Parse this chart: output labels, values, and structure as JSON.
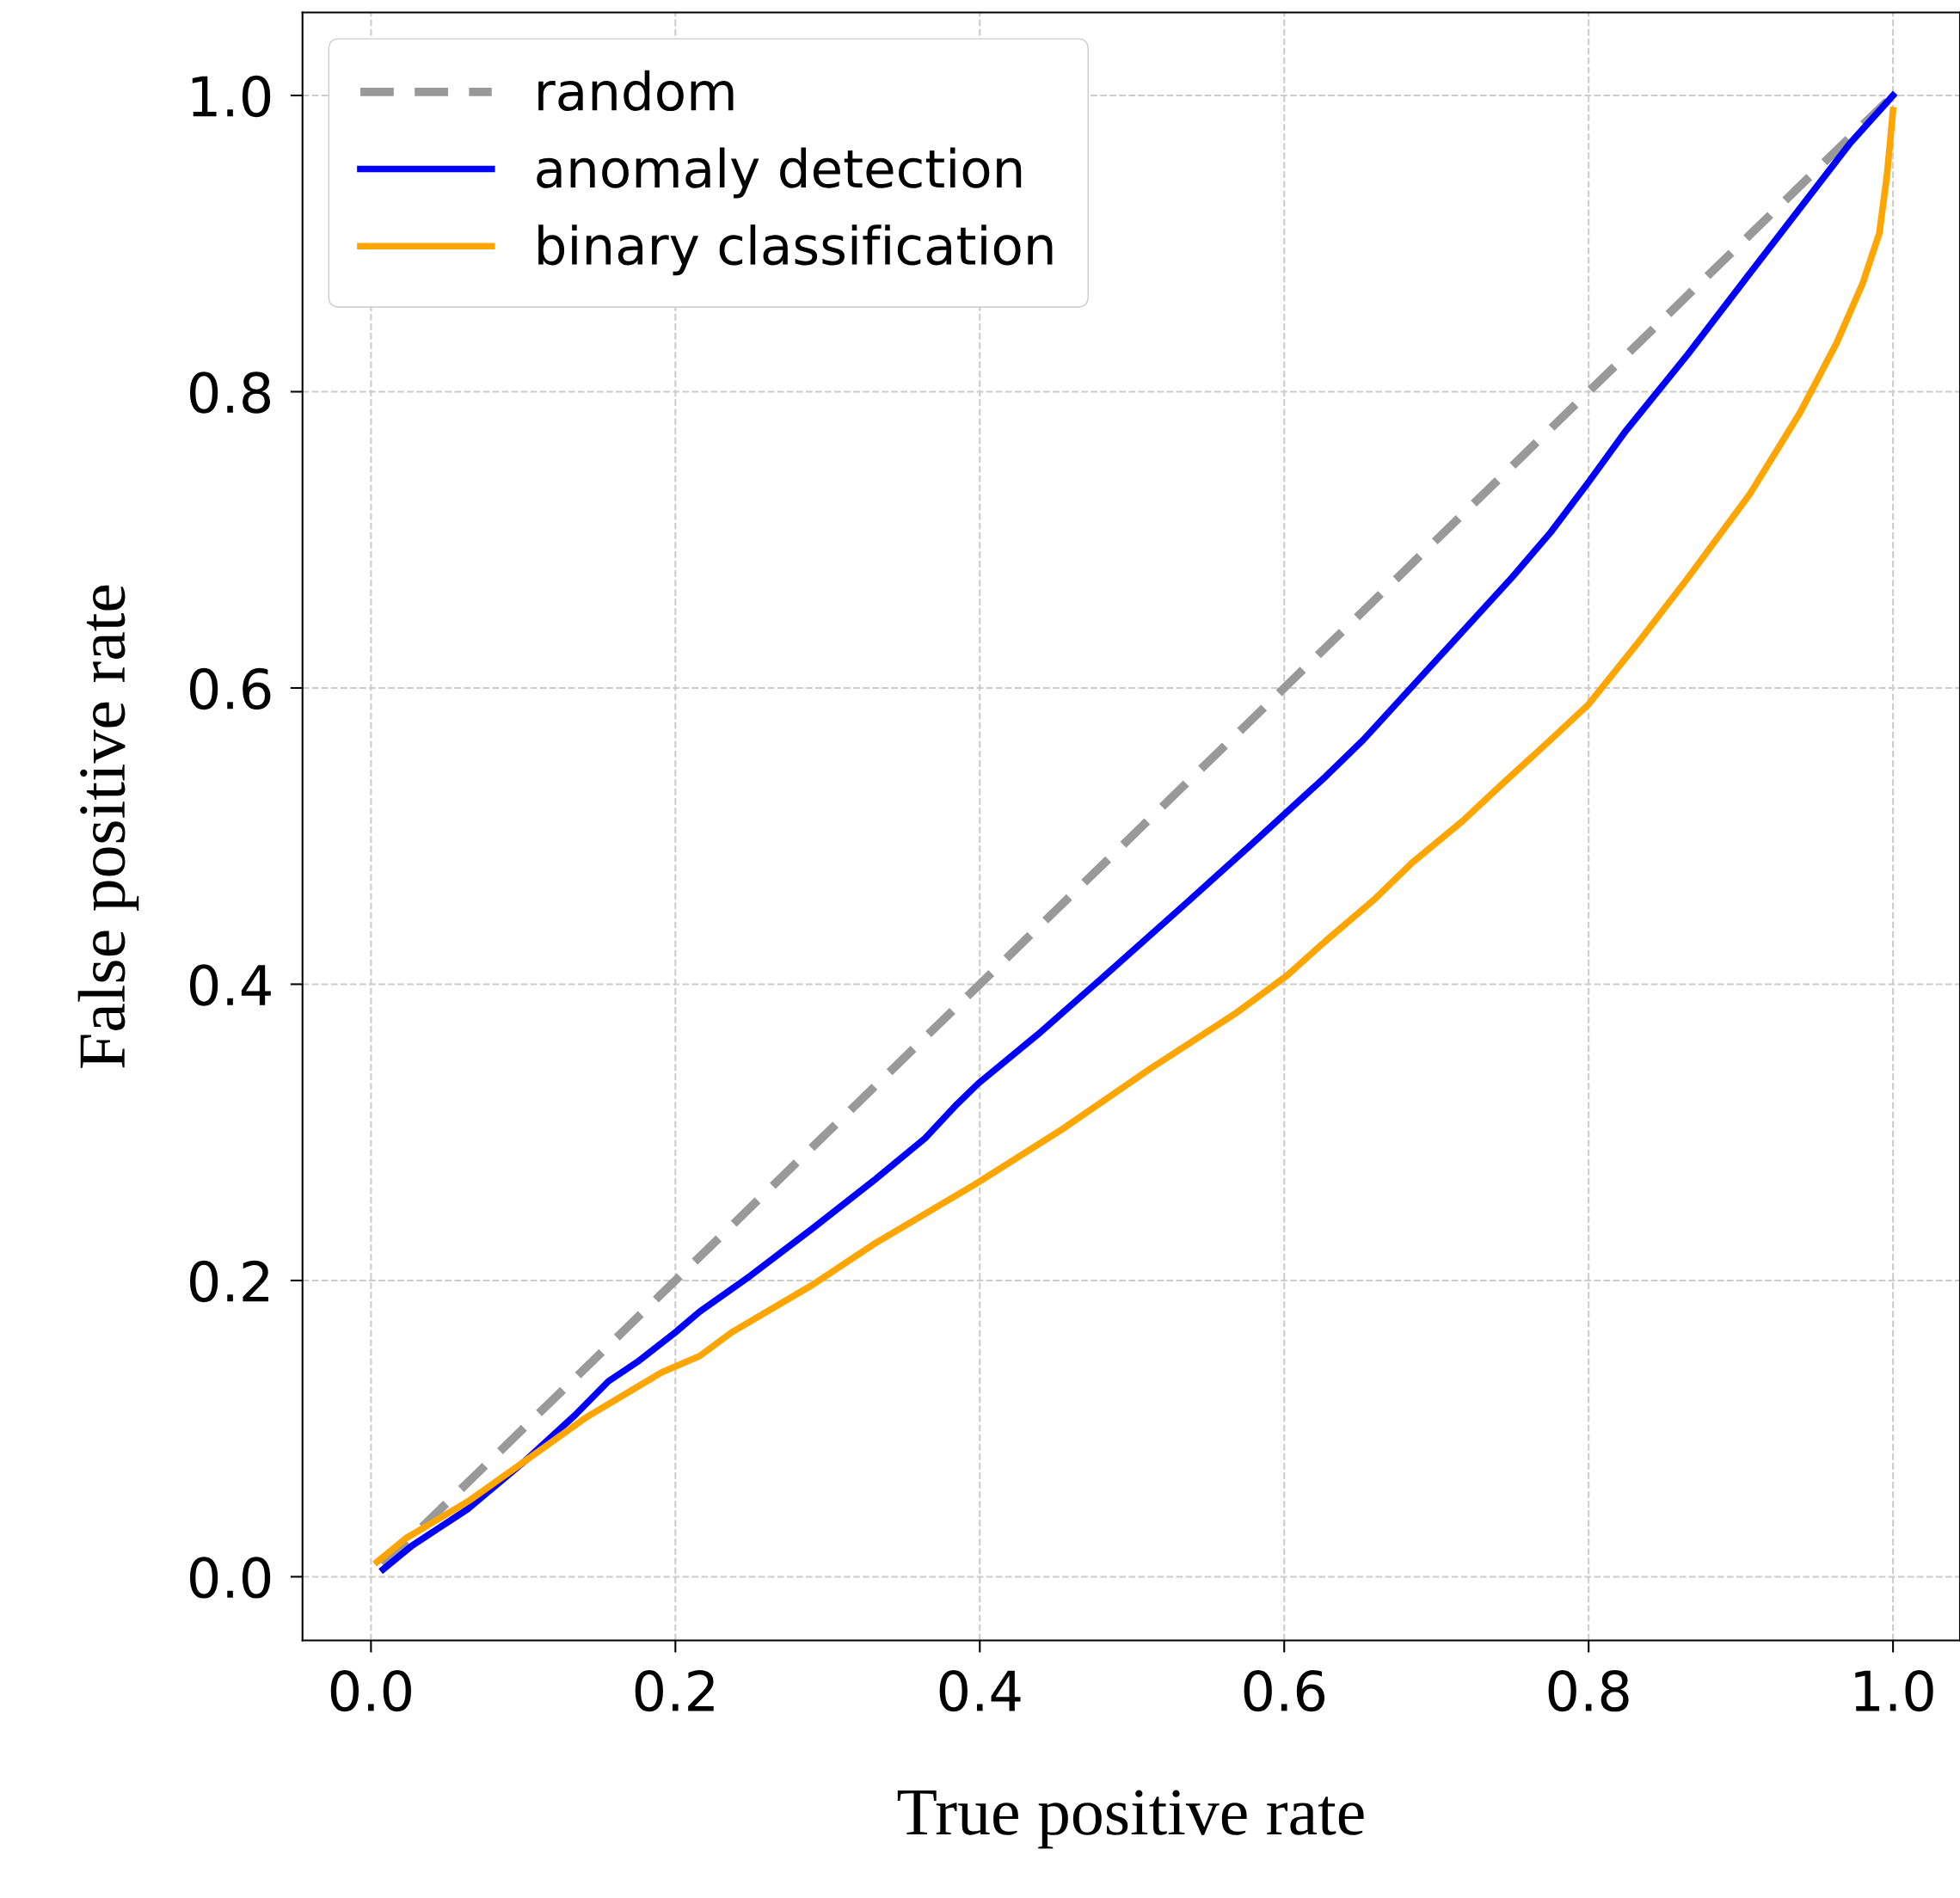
{
  "chart_data": {
    "type": "line",
    "xlabel": "True positive rate",
    "ylabel": "False positive rate",
    "xlim": [
      -0.045,
      1.044
    ],
    "ylim": [
      -0.043,
      1.056
    ],
    "xticks": [
      {
        "value": 0,
        "label": "0.0"
      },
      0.2,
      0.4,
      0.6,
      0.8,
      {
        "value": 1,
        "label": "1.0"
      }
    ],
    "yticks": [
      {
        "value": 0,
        "label": "0.0"
      },
      0.2,
      0.4,
      0.6,
      0.8,
      {
        "value": 1,
        "label": "1.0"
      }
    ],
    "grid": true,
    "legend": "top left",
    "series": [
      {
        "name": "random",
        "color": "#999999",
        "line_style": "dashed",
        "x": [
          0.008,
          1.004
        ],
        "values": [
          0.008,
          1.004
        ]
      },
      {
        "name": "anomaly detection",
        "color": "#0000ff",
        "line_style": "solid",
        "x": [
          0.008,
          0.027,
          0.064,
          0.101,
          0.134,
          0.156,
          0.175,
          0.2,
          0.216,
          0.249,
          0.29,
          0.331,
          0.364,
          0.385,
          0.399,
          0.438,
          0.479,
          0.537,
          0.578,
          0.627,
          0.652,
          0.701,
          0.75,
          0.775,
          0.8,
          0.824,
          0.865,
          0.906,
          0.939,
          0.972,
          1.0
        ],
        "values": [
          0.005,
          0.021,
          0.046,
          0.078,
          0.109,
          0.132,
          0.145,
          0.165,
          0.179,
          0.203,
          0.235,
          0.268,
          0.296,
          0.319,
          0.333,
          0.366,
          0.403,
          0.456,
          0.494,
          0.54,
          0.565,
          0.62,
          0.675,
          0.705,
          0.739,
          0.773,
          0.825,
          0.88,
          0.924,
          0.968,
          1.0
        ]
      },
      {
        "name": "binary classification",
        "color": "#ffa500",
        "line_style": "solid",
        "x": [
          0.004,
          0.023,
          0.064,
          0.101,
          0.142,
          0.191,
          0.216,
          0.237,
          0.29,
          0.331,
          0.397,
          0.454,
          0.512,
          0.569,
          0.602,
          0.627,
          0.66,
          0.684,
          0.717,
          0.742,
          0.775,
          0.8,
          0.832,
          0.865,
          0.906,
          0.939,
          0.963,
          0.98,
          0.991,
          0.996,
          1.0
        ],
        "values": [
          0.01,
          0.026,
          0.051,
          0.078,
          0.108,
          0.138,
          0.149,
          0.165,
          0.197,
          0.225,
          0.265,
          0.302,
          0.343,
          0.381,
          0.406,
          0.429,
          0.458,
          0.482,
          0.51,
          0.534,
          0.565,
          0.589,
          0.63,
          0.674,
          0.731,
          0.786,
          0.833,
          0.873,
          0.907,
          0.946,
          0.99
        ]
      }
    ]
  }
}
